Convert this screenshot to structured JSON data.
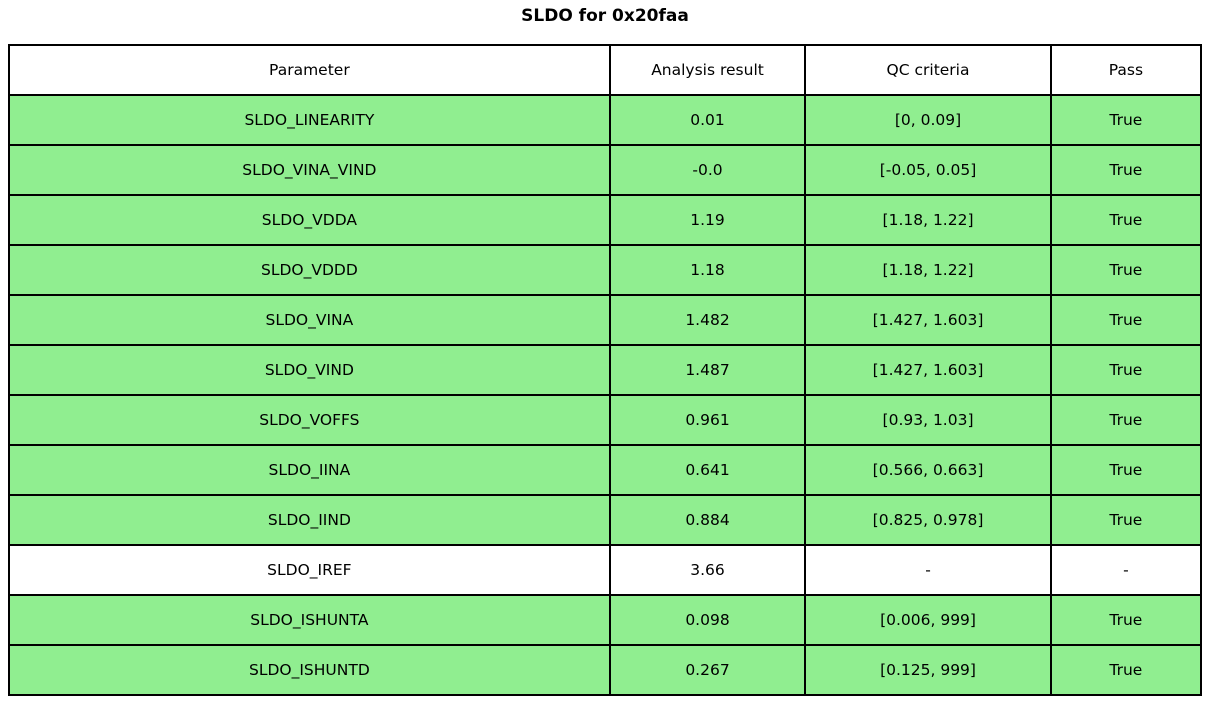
{
  "title": "SLDO for 0x20faa",
  "colors": {
    "pass_row": "#90ee90",
    "neutral_row": "#ffffff",
    "border": "#000000",
    "text": "#000000",
    "background": "#ffffff"
  },
  "table": {
    "headers": [
      "Parameter",
      "Analysis result",
      "QC criteria",
      "Pass"
    ],
    "rows": [
      {
        "parameter": "SLDO_LINEARITY",
        "analysis_result": "0.01",
        "qc_criteria": "[0, 0.09]",
        "pass": "True",
        "highlight": true
      },
      {
        "parameter": "SLDO_VINA_VIND",
        "analysis_result": "-0.0",
        "qc_criteria": "[-0.05, 0.05]",
        "pass": "True",
        "highlight": true
      },
      {
        "parameter": "SLDO_VDDA",
        "analysis_result": "1.19",
        "qc_criteria": "[1.18, 1.22]",
        "pass": "True",
        "highlight": true
      },
      {
        "parameter": "SLDO_VDDD",
        "analysis_result": "1.18",
        "qc_criteria": "[1.18, 1.22]",
        "pass": "True",
        "highlight": true
      },
      {
        "parameter": "SLDO_VINA",
        "analysis_result": "1.482",
        "qc_criteria": "[1.427, 1.603]",
        "pass": "True",
        "highlight": true
      },
      {
        "parameter": "SLDO_VIND",
        "analysis_result": "1.487",
        "qc_criteria": "[1.427, 1.603]",
        "pass": "True",
        "highlight": true
      },
      {
        "parameter": "SLDO_VOFFS",
        "analysis_result": "0.961",
        "qc_criteria": "[0.93, 1.03]",
        "pass": "True",
        "highlight": true
      },
      {
        "parameter": "SLDO_IINA",
        "analysis_result": "0.641",
        "qc_criteria": "[0.566, 0.663]",
        "pass": "True",
        "highlight": true
      },
      {
        "parameter": "SLDO_IIND",
        "analysis_result": "0.884",
        "qc_criteria": "[0.825, 0.978]",
        "pass": "True",
        "highlight": true
      },
      {
        "parameter": "SLDO_IREF",
        "analysis_result": "3.66",
        "qc_criteria": "-",
        "pass": "-",
        "highlight": false
      },
      {
        "parameter": "SLDO_ISHUNTA",
        "analysis_result": "0.098",
        "qc_criteria": "[0.006, 999]",
        "pass": "True",
        "highlight": true
      },
      {
        "parameter": "SLDO_ISHUNTD",
        "analysis_result": "0.267",
        "qc_criteria": "[0.125, 999]",
        "pass": "True",
        "highlight": true
      }
    ]
  }
}
